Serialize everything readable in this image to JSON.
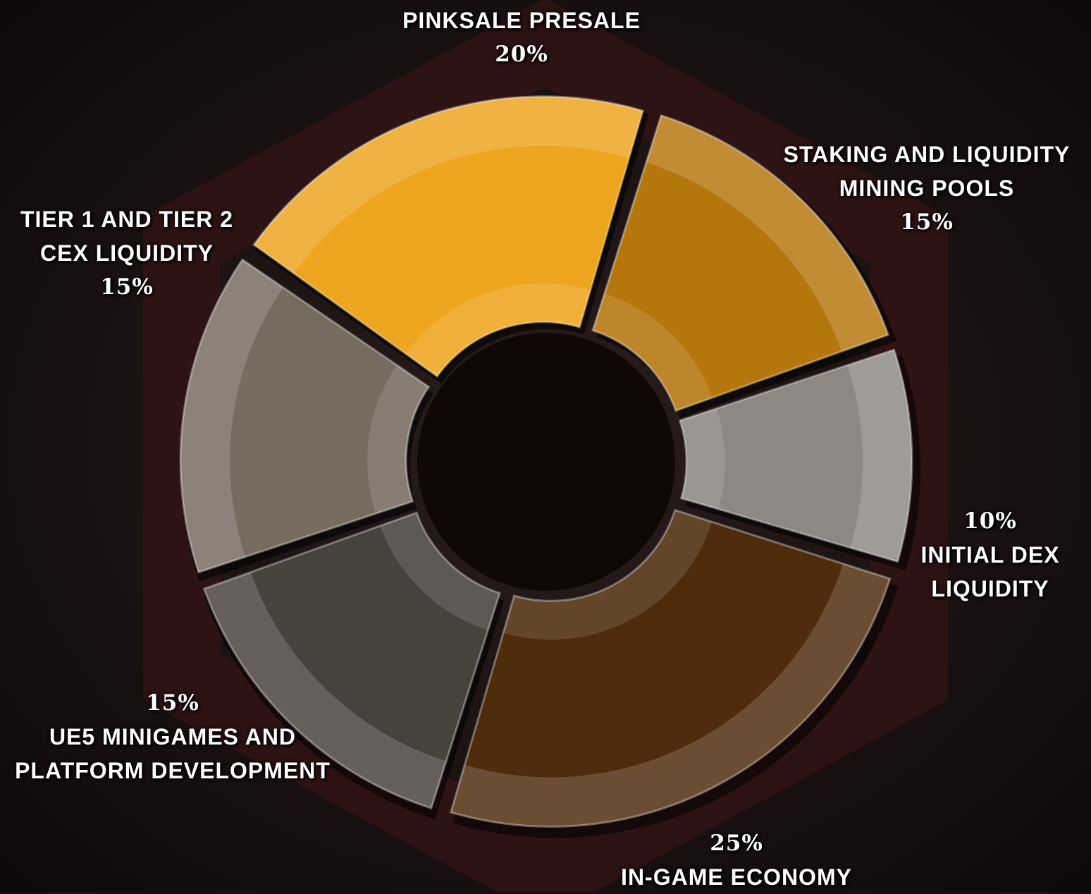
{
  "chart_data": {
    "type": "pie",
    "donut": true,
    "categories": [
      "PINKSALE PRESALE",
      "STAKING AND LIQUIDITY MINING POOLS",
      "INITIAL DEX LIQUIDITY",
      "IN-GAME ECONOMY",
      "UE5 MINIGAMES AND PLATFORM DEVELOPMENT",
      "TIER 1 AND TIER 2 CEX LIQUIDITY"
    ],
    "values": [
      20,
      15,
      10,
      25,
      15,
      15
    ],
    "value_labels": [
      "20%",
      "15%",
      "10%",
      "25%",
      "15%",
      "15%"
    ],
    "colors": [
      "#eea51f",
      "#b6760e",
      "#8d8883",
      "#4e2c0c",
      "#48423d",
      "#776b60"
    ]
  }
}
